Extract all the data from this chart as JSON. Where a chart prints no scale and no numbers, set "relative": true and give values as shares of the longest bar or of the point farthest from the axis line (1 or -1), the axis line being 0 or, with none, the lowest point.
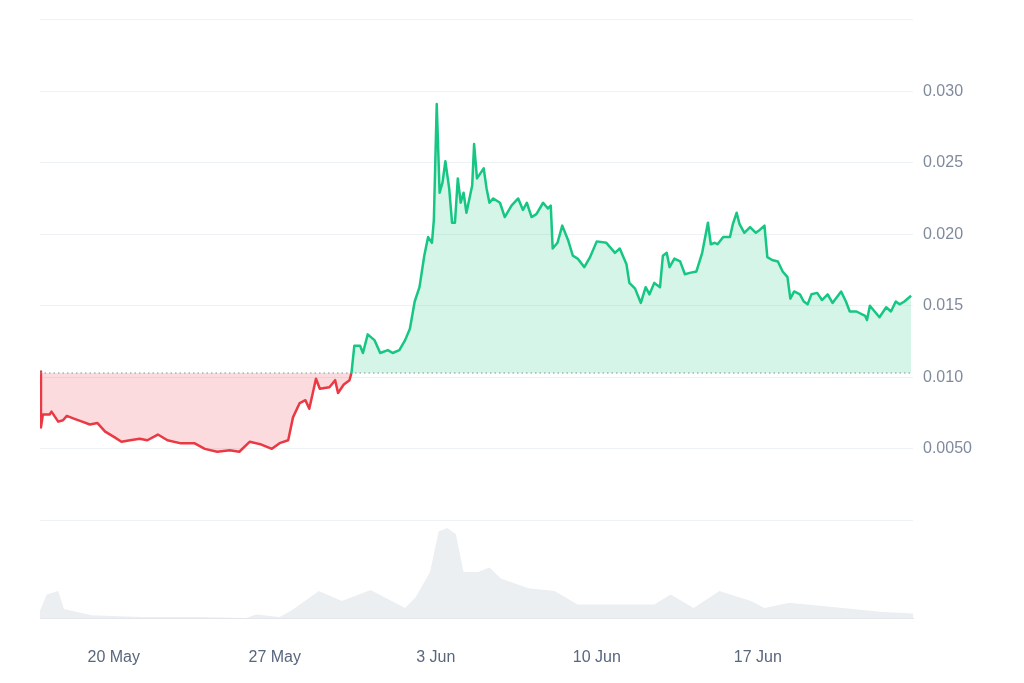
{
  "chart_data": [
    {
      "type": "area",
      "xlim": [
        "--05-16T19:00",
        "--06-23T18:00"
      ],
      "ylim": [
        0,
        0.035
      ],
      "yticks": [
        {
          "value": 0,
          "label": null
        },
        {
          "value": 0.005,
          "label": "0.0050"
        },
        {
          "value": 0.01,
          "label": "0.010"
        },
        {
          "value": 0.015,
          "label": "0.015"
        },
        {
          "value": 0.02,
          "label": "0.020"
        },
        {
          "value": 0.025,
          "label": "0.025"
        },
        {
          "value": 0.03,
          "label": "0.030"
        },
        {
          "value": 0.035,
          "label": null
        }
      ],
      "grid": "y",
      "legend": false,
      "tick_labels": "y",
      "ref_lines": [
        {
          "axis": "y",
          "value": 0.0103,
          "color": "#8a8f99",
          "line_style": "dotted"
        }
      ],
      "series": [
        {
          "color": "#ea3943",
          "x": [
            "--05-16T19:00",
            "--05-16T20:00",
            "--05-16T22:00",
            "--05-17T05:00",
            "--05-17T07:00",
            "--05-17T14:00",
            "--05-17T19:00",
            "--05-17T23:00",
            "--05-18T07:00",
            "--05-18T15:00",
            "--05-18T23:00",
            "--05-19T07:00",
            "--05-19T15:00",
            "--05-20T01:00",
            "--05-20T08:00",
            "--05-20T17:00",
            "--05-21T03:00",
            "--05-21T11:00",
            "--05-21T22:00",
            "--05-22T08:00",
            "--05-22T21:00",
            "--05-23T12:00",
            "--05-23T23:00",
            "--05-24T12:00",
            "--05-25T01:00",
            "--05-25T11:00",
            "--05-25T22:00",
            "--05-26T10:00",
            "--05-26T21:00",
            "--05-27T05:00",
            "--05-27T14:00",
            "--05-27T19:00",
            "--05-28T02:00",
            "--05-28T08:00",
            "--05-28T12:00",
            "--05-28T19:00",
            "--05-28T23:00",
            "--05-29T09:00",
            "--05-29T15:00",
            "--05-29T18:00",
            "--05-30T00:00",
            "--05-30T06:00",
            "--05-30T08:00"
          ],
          "values": [
            0.0104,
            0.0065,
            0.0074,
            0.0074,
            0.0076,
            0.0069,
            0.007,
            0.0073,
            0.0071,
            0.0069,
            0.0067,
            0.0068,
            0.0062,
            0.0058,
            0.0055,
            0.0056,
            0.0057,
            0.0056,
            0.006,
            0.0056,
            0.0054,
            0.0054,
            0.005,
            0.0048,
            0.0049,
            0.0048,
            0.0055,
            0.0053,
            0.005,
            0.0054,
            0.0056,
            0.0072,
            0.0082,
            0.0084,
            0.0078,
            0.0099,
            0.0092,
            0.0093,
            0.0098,
            0.0089,
            0.0095,
            0.0098,
            0.0103
          ]
        },
        {
          "color": "#16c784",
          "x": [
            "--05-30T08:00",
            "--05-30T11:00",
            "--05-30T17:00",
            "--05-30T20:00",
            "--05-31T01:00",
            "--05-31T08:00",
            "--05-31T14:00",
            "--05-31T22:00",
            "--06-01T03:00",
            "--06-01T10:00",
            "--06-01T16:00",
            "--06-01T21:00",
            "--06-02T02:00",
            "--06-02T07:00",
            "--06-02T12:00",
            "--06-02T16:00",
            "--06-02T20:00",
            "--06-02T22:00",
            "--06-03T01:00",
            "--06-03T04:00",
            "--06-03T07:00",
            "--06-03T10:00",
            "--06-03T14:00",
            "--06-03T17:00",
            "--06-03T20:00",
            "--06-03T23:00",
            "--06-04T02:00",
            "--06-04T05:00",
            "--06-04T08:00",
            "--06-04T14:00",
            "--06-04T16:00",
            "--06-04T19:00",
            "--06-04T22:00",
            "--06-05T02:00",
            "--06-05T05:00",
            "--06-05T08:00",
            "--06-05T12:00",
            "--06-05T19:00",
            "--06-06T00:00",
            "--06-06T07:00",
            "--06-06T14:00",
            "--06-06T19:00",
            "--06-06T23:00",
            "--06-07T04:00",
            "--06-07T09:00",
            "--06-07T16:00",
            "--06-07T21:00",
            "--06-08T00:00",
            "--06-08T02:00",
            "--06-08T07:00",
            "--06-08T12:00",
            "--06-08T18:00",
            "--06-08T23:00",
            "--06-09T04:00",
            "--06-09T11:00",
            "--06-09T17:00",
            "--06-10T00:00",
            "--06-10T10:00",
            "--06-10T19:00",
            "--06-11T00:00",
            "--06-11T07:00",
            "--06-11T10:00",
            "--06-11T16:00",
            "--06-11T22:00",
            "--06-12T03:00",
            "--06-12T07:00",
            "--06-12T12:00",
            "--06-12T18:00",
            "--06-12T21:00",
            "--06-13T01:00",
            "--06-13T04:00",
            "--06-13T09:00",
            "--06-13T15:00",
            "--06-13T20:00",
            "--06-14T01:00",
            "--06-14T08:00",
            "--06-14T14:00",
            "--06-14T20:00",
            "--06-14T23:00",
            "--06-15T03:00",
            "--06-15T06:00",
            "--06-15T12:00",
            "--06-15T19:00",
            "--06-15T22:00",
            "--06-16T02:00",
            "--06-16T05:00",
            "--06-16T10:00",
            "--06-16T16:00",
            "--06-16T22:00",
            "--06-17T02:00",
            "--06-17T07:00",
            "--06-17T10:00",
            "--06-17T15:00",
            "--06-17T21:00",
            "--06-18T02:00",
            "--06-18T07:00",
            "--06-18T10:00",
            "--06-18T14:00",
            "--06-18T20:00",
            "--06-19T00:00",
            "--06-19T04:00",
            "--06-19T08:00",
            "--06-19T14:00",
            "--06-19T19:00",
            "--06-20T01:00",
            "--06-20T06:00",
            "--06-20T15:00",
            "--06-20T20:00",
            "--06-21T00:00",
            "--06-21T07:00",
            "--06-21T16:00",
            "--06-21T18:00",
            "--06-21T21:00",
            "--06-22T02:00",
            "--06-22T07:00",
            "--06-22T14:00",
            "--06-22T19:00",
            "--06-23T00:00",
            "--06-23T04:00",
            "--06-23T09:00",
            "--06-23T16:00"
          ],
          "values": [
            0.0103,
            0.0122,
            0.0122,
            0.0117,
            0.013,
            0.0126,
            0.0117,
            0.0119,
            0.0117,
            0.0119,
            0.0126,
            0.0134,
            0.0153,
            0.0163,
            0.0185,
            0.0198,
            0.0194,
            0.021,
            0.0291,
            0.0229,
            0.0236,
            0.0251,
            0.0232,
            0.0208,
            0.0208,
            0.0239,
            0.0222,
            0.0229,
            0.0215,
            0.0234,
            0.0263,
            0.0239,
            0.0242,
            0.0246,
            0.0232,
            0.0222,
            0.0225,
            0.0222,
            0.0212,
            0.022,
            0.0225,
            0.0217,
            0.0222,
            0.0212,
            0.0214,
            0.0222,
            0.0218,
            0.022,
            0.019,
            0.0194,
            0.0206,
            0.0196,
            0.0185,
            0.0183,
            0.0177,
            0.0184,
            0.0195,
            0.0194,
            0.0187,
            0.019,
            0.0179,
            0.0166,
            0.0162,
            0.0152,
            0.0163,
            0.0158,
            0.0166,
            0.0163,
            0.0185,
            0.0187,
            0.0177,
            0.0183,
            0.0181,
            0.0172,
            0.0173,
            0.0174,
            0.0187,
            0.0208,
            0.0193,
            0.0194,
            0.0193,
            0.0198,
            0.0198,
            0.0207,
            0.0215,
            0.0207,
            0.0201,
            0.0205,
            0.0201,
            0.0203,
            0.0206,
            0.0184,
            0.0182,
            0.0181,
            0.0174,
            0.017,
            0.0155,
            0.016,
            0.0158,
            0.0153,
            0.0151,
            0.0158,
            0.0159,
            0.0154,
            0.0158,
            0.0152,
            0.016,
            0.0153,
            0.0146,
            0.0146,
            0.0143,
            0.014,
            0.015,
            0.0146,
            0.0142,
            0.0149,
            0.0146,
            0.0153,
            0.0151,
            0.0153,
            0.0157
          ]
        }
      ]
    },
    {
      "type": "area",
      "relative": true,
      "legend": false,
      "tick_labels": "x",
      "grid": false,
      "xlim": [
        "--05-16T19:00",
        "--06-23T18:00"
      ],
      "xticks": [
        {
          "value": "--05-20",
          "label": "20 May"
        },
        {
          "value": "--05-27",
          "label": "27 May"
        },
        {
          "value": "--06-03",
          "label": "3 Jun"
        },
        {
          "value": "--06-10",
          "label": "10 Jun"
        },
        {
          "value": "--06-17",
          "label": "17 Jun"
        }
      ],
      "series": [
        {
          "color": "#eceff2",
          "x": [
            "--05-16T19:00",
            "--05-17T02:00",
            "--05-17T14:00",
            "--05-17T20:00",
            "--05-19T01:00",
            "--05-21T07:00",
            "--05-23T18:00",
            "--05-25T18:00",
            "--05-26T05:00",
            "--05-27T05:00",
            "--05-27T17:00",
            "--05-28T22:00",
            "--05-29T22:00",
            "--05-31T04:00",
            "--06-01T16:00",
            "--06-02T03:00",
            "--06-02T18:00",
            "--06-03T03:00",
            "--06-03T12:00",
            "--06-03T21:00",
            "--06-04T05:00",
            "--06-04T20:00",
            "--06-05T08:00",
            "--06-05T20:00",
            "--06-07T01:00",
            "--06-08T04:00",
            "--06-09T04:00",
            "--06-11T06:00",
            "--06-12T12:00",
            "--06-13T05:00",
            "--06-14T05:00",
            "--06-15T08:00",
            "--06-16T17:00",
            "--06-17T07:00",
            "--06-18T09:00",
            "--06-20T09:00",
            "--06-22T08:00",
            "--06-23T18:00"
          ],
          "values": [
            0.08,
            0.26,
            0.3,
            0.1,
            0.03,
            0.01,
            0.01,
            0,
            0.04,
            0.01,
            0.08,
            0.3,
            0.19,
            0.31,
            0.11,
            0.23,
            0.51,
            0.96,
            1,
            0.93,
            0.51,
            0.51,
            0.56,
            0.44,
            0.33,
            0.3,
            0.15,
            0.15,
            0.15,
            0.26,
            0.11,
            0.3,
            0.19,
            0.11,
            0.17,
            0.12,
            0.07,
            0.05
          ]
        }
      ]
    }
  ]
}
